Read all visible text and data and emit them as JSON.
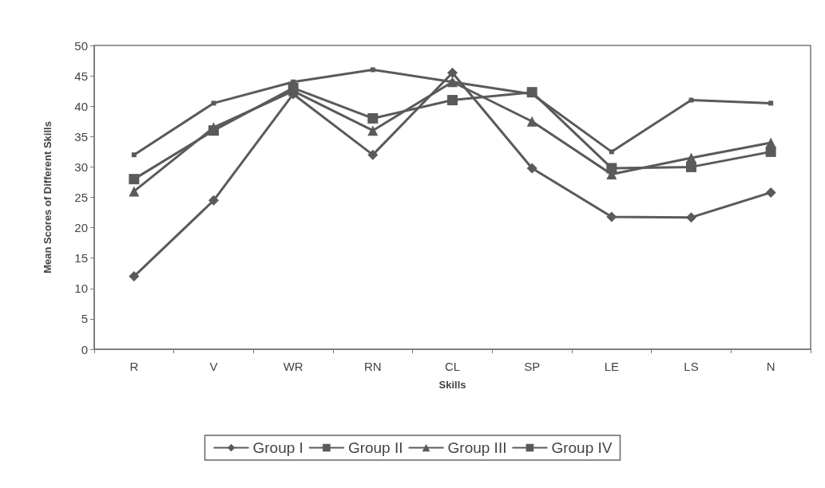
{
  "chart_data": {
    "type": "line",
    "xlabel": "Skills",
    "ylabel": "Mean Scores of Different Skills",
    "categories": [
      "R",
      "V",
      "WR",
      "RN",
      "CL",
      "SP",
      "LE",
      "LS",
      "N"
    ],
    "ylim": [
      0,
      50
    ],
    "yticks": [
      0,
      5,
      10,
      15,
      20,
      25,
      30,
      35,
      40,
      45,
      50
    ],
    "grid": false,
    "legend": "bottom",
    "series": [
      {
        "name": "Group I",
        "color": "#5a5a5a",
        "marker": "diamond",
        "values": [
          12,
          24.5,
          42,
          32,
          45.5,
          29.8,
          21.8,
          21.7,
          25.8
        ]
      },
      {
        "name": "Group II",
        "color": "#5a5a5a",
        "marker": "square",
        "values": [
          28,
          36,
          43,
          38,
          41,
          42.3,
          29.8,
          30,
          32.5
        ]
      },
      {
        "name": "Group III",
        "color": "#5a5a5a",
        "marker": "triangle",
        "values": [
          26,
          36.5,
          42.5,
          36,
          44,
          37.5,
          28.8,
          31.5,
          34
        ]
      },
      {
        "name": "Group IV",
        "color": "#5a5a5a",
        "marker": "square",
        "values": [
          32,
          40.5,
          44,
          46,
          44,
          42,
          32.5,
          41,
          40.5
        ]
      }
    ]
  }
}
